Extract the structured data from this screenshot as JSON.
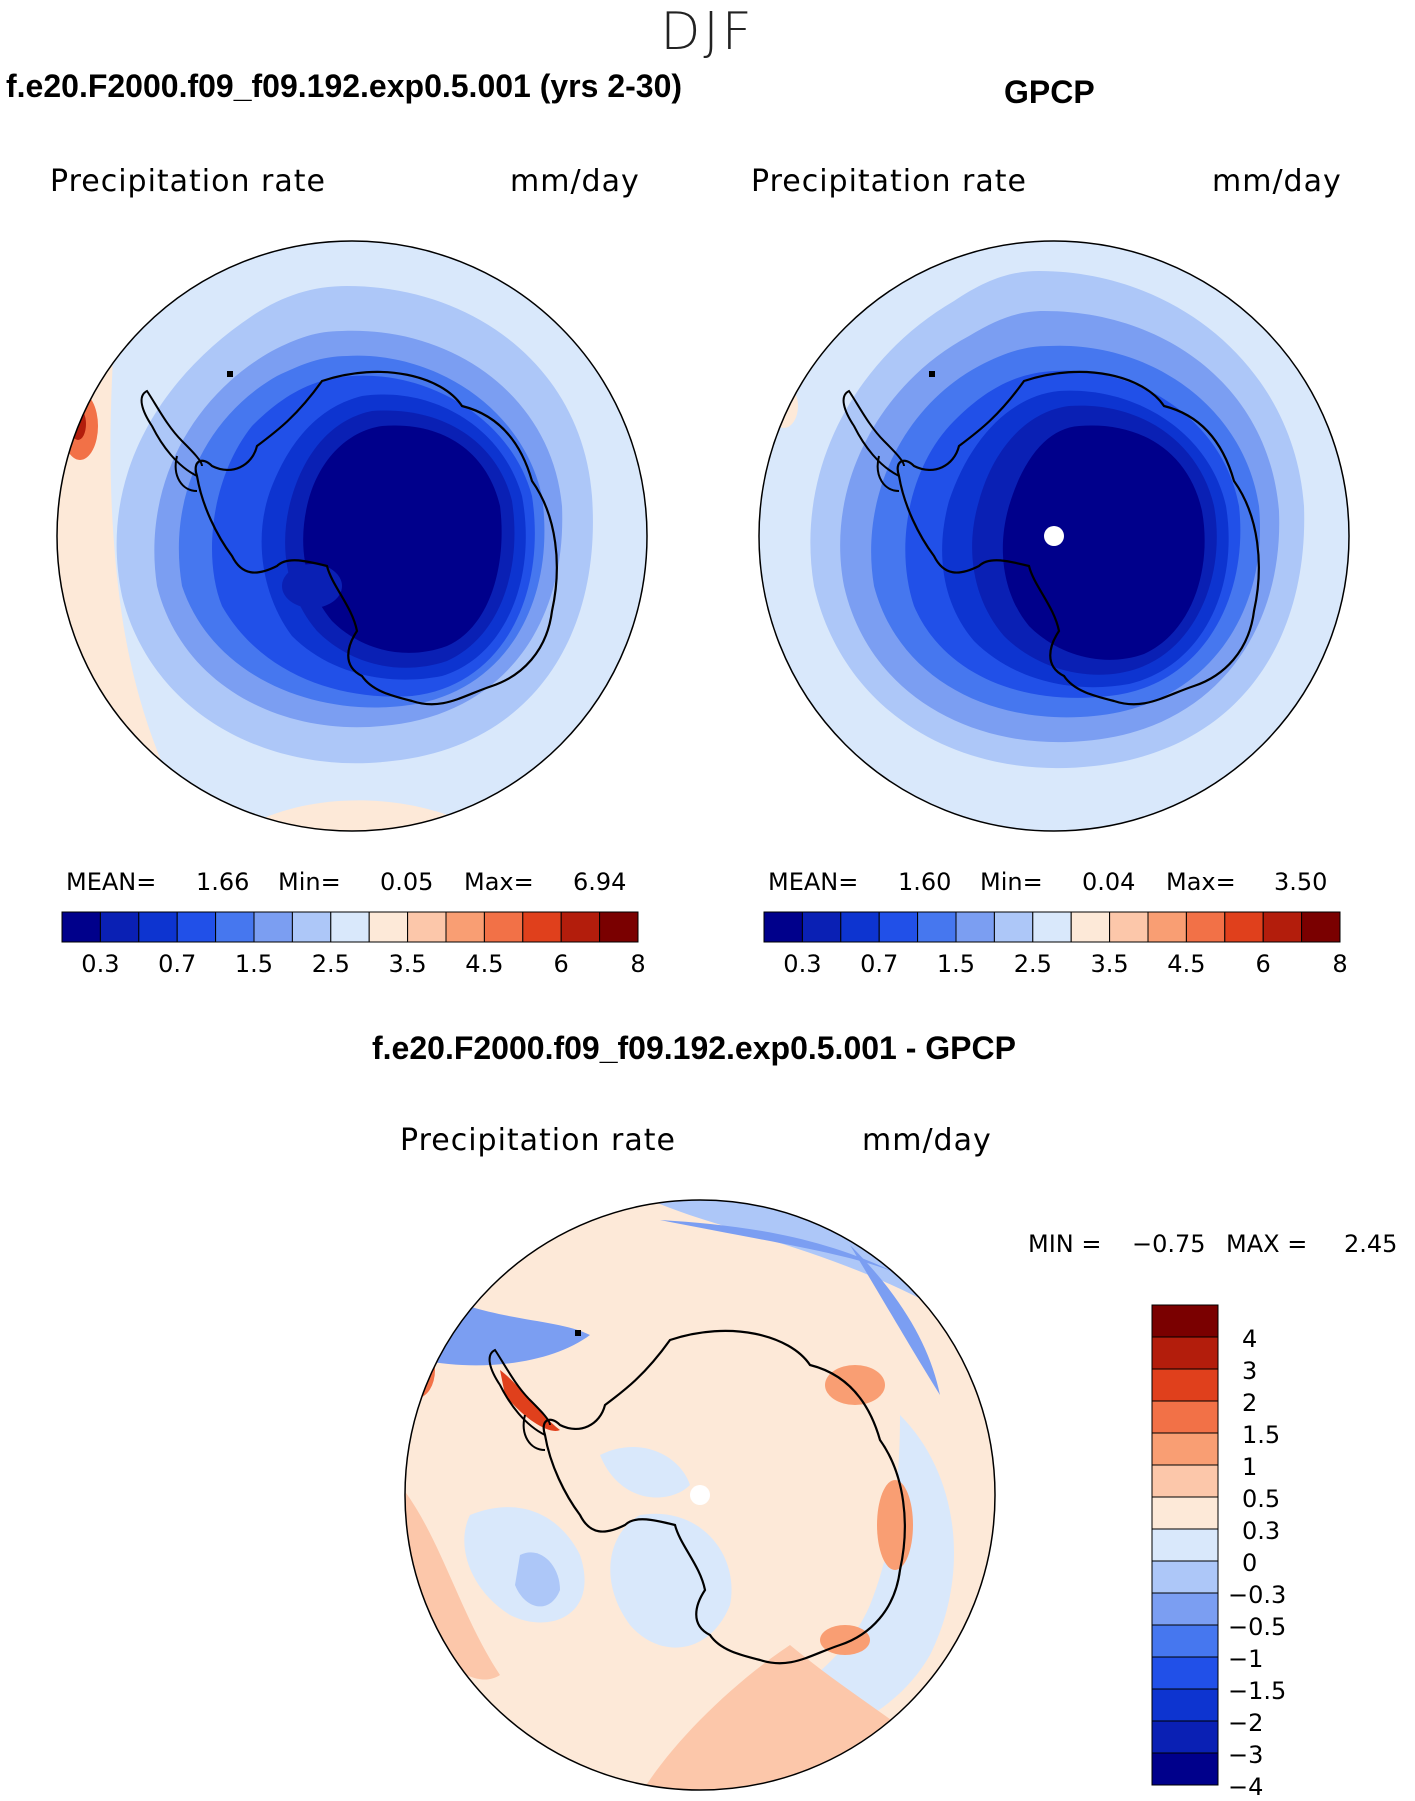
{
  "season": "DJF",
  "panels": [
    {
      "id": "model",
      "title": "f.e20.F2000.f09_f09.192.exp0.5.001 (yrs 2-30)",
      "variable": "Precipitation rate",
      "units": "mm/day",
      "stats": {
        "mean_label": "MEAN=",
        "mean": "1.66",
        "min_label": "Min=",
        "min": "0.05",
        "max_label": "Max=",
        "max": "6.94"
      }
    },
    {
      "id": "obs",
      "title": "GPCP",
      "variable": "Precipitation rate",
      "units": "mm/day",
      "stats": {
        "mean_label": "MEAN=",
        "mean": "1.60",
        "min_label": "Min=",
        "min": "0.04",
        "max_label": "Max=",
        "max": "3.50"
      }
    },
    {
      "id": "diff",
      "title": "f.e20.F2000.f09_f09.192.exp0.5.001 - GPCP",
      "variable": "Precipitation rate",
      "units": "mm/day",
      "stats": {
        "min_label": "MIN =",
        "min": "−0.75",
        "max_label": "MAX =",
        "max": "2.45"
      }
    }
  ],
  "chart_data": [
    {
      "type": "heatmap",
      "projection": "south-polar-stereographic",
      "title": "f.e20.F2000.f09_f09.192.exp0.5.001 (yrs 2-30)",
      "field": "Precipitation rate (mm/day)",
      "colorbar_ticks": [
        "0.3",
        "0.7",
        "1.5",
        "2.5",
        "3.5",
        "4.5",
        "6",
        "8"
      ],
      "colorbar_colors": [
        "#00008b",
        "#0a20b4",
        "#0d34d0",
        "#2150e8",
        "#4677ef",
        "#7b9ef2",
        "#adc7f8",
        "#d9e8fb",
        "#fde9d8",
        "#fcc7aa",
        "#f99e73",
        "#f27147",
        "#e0401c",
        "#b31d0c",
        "#7a0000"
      ],
      "mean": 1.66,
      "min": 0.05,
      "max": 6.94
    },
    {
      "type": "heatmap",
      "projection": "south-polar-stereographic",
      "title": "GPCP",
      "field": "Precipitation rate (mm/day)",
      "colorbar_ticks": [
        "0.3",
        "0.7",
        "1.5",
        "2.5",
        "3.5",
        "4.5",
        "6",
        "8"
      ],
      "colorbar_colors": [
        "#00008b",
        "#0a20b4",
        "#0d34d0",
        "#2150e8",
        "#4677ef",
        "#7b9ef2",
        "#adc7f8",
        "#d9e8fb",
        "#fde9d8",
        "#fcc7aa",
        "#f99e73",
        "#f27147",
        "#e0401c",
        "#b31d0c",
        "#7a0000"
      ],
      "mean": 1.6,
      "min": 0.04,
      "max": 3.5
    },
    {
      "type": "heatmap",
      "projection": "south-polar-stereographic",
      "title": "f.e20.F2000.f09_f09.192.exp0.5.001 - GPCP",
      "field": "Precipitation rate difference (mm/day)",
      "colorbar_ticks": [
        "4",
        "3",
        "2",
        "1.5",
        "1",
        "0.5",
        "0.3",
        "0",
        "−0.3",
        "−0.5",
        "−1",
        "−1.5",
        "−2",
        "−3",
        "−4"
      ],
      "colorbar_colors": [
        "#7a0000",
        "#b31d0c",
        "#e0401c",
        "#f27147",
        "#f99e73",
        "#fcc7aa",
        "#fde9d8",
        "#d9e8fb",
        "#adc7f8",
        "#7b9ef2",
        "#4677ef",
        "#2150e8",
        "#0d34d0",
        "#0a20b4",
        "#00008b"
      ],
      "min": -0.75,
      "max": 2.45
    }
  ]
}
